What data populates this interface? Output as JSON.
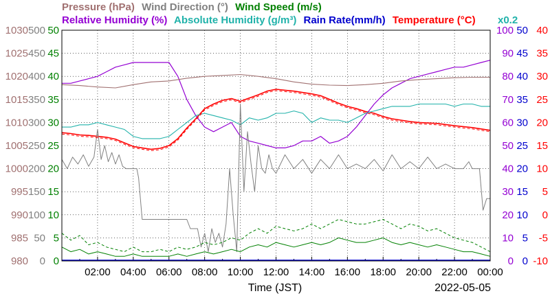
{
  "chart_data": {
    "type": "line",
    "date_label": "2022-05-05",
    "xlabel": "Time (JST)",
    "x_tick_labels": [
      "02:00",
      "04:00",
      "06:00",
      "08:00",
      "10:00",
      "12:00",
      "14:00",
      "16:00",
      "18:00",
      "20:00",
      "22:00",
      "00:00"
    ],
    "x_unit": "hours",
    "xlim": [
      0,
      24
    ],
    "legend_row1": [
      {
        "id": "pressure",
        "label": "Pressure (hPa)",
        "color": "#a07070"
      },
      {
        "id": "winddir",
        "label": "Wind Direction (°)",
        "color": "#808080"
      },
      {
        "id": "windspeed",
        "label": "Wind Speed (m/s)",
        "color": "#008000"
      }
    ],
    "legend_row2": [
      {
        "id": "rh",
        "label": "Relative Humidity (%)",
        "color": "#9400d3"
      },
      {
        "id": "ah",
        "label": "Absolute Humidity (g/m³)",
        "color": "#20b2aa"
      },
      {
        "id": "rain",
        "label": "Rain Rate(mm/h)",
        "color": "#0000cd"
      },
      {
        "id": "temp",
        "label": "Temperature (°C)",
        "color": "#ff0000"
      }
    ],
    "ah_scale_note": "x0.2",
    "axes": {
      "pressure": {
        "ticks": [
          "1030",
          "1025",
          "1020",
          "1015",
          "1010",
          "1005",
          "1000",
          "995",
          "990",
          "985",
          "980"
        ],
        "ylim": [
          980,
          1030
        ],
        "color": "#a07070"
      },
      "winddir": {
        "ticks": [
          "500",
          "450",
          "400",
          "350",
          "300",
          "250",
          "200",
          "150",
          "100",
          "50",
          "0"
        ],
        "ylim": [
          0,
          500
        ],
        "color": "#808080"
      },
      "windspeed": {
        "ticks": [
          "50",
          "45",
          "40",
          "35",
          "30",
          "25",
          "20",
          "15",
          "10",
          "5",
          "0"
        ],
        "ylim": [
          0,
          50
        ],
        "color": "#008000"
      },
      "rh": {
        "ticks": [
          "100",
          "90",
          "80",
          "70",
          "60",
          "50",
          "40",
          "30",
          "20",
          "10",
          "0"
        ],
        "ylim": [
          0,
          100
        ],
        "color": "#9400d3"
      },
      "rain": {
        "ticks": [
          "50",
          "45",
          "40",
          "35",
          "30",
          "25",
          "20",
          "15",
          "10",
          "5",
          "0"
        ],
        "ylim": [
          0,
          50
        ],
        "color": "#0000cd"
      },
      "temp": {
        "ticks": [
          "40",
          "35",
          "30",
          "25",
          "20",
          "15",
          "10",
          "5",
          "0",
          "-5",
          "-10"
        ],
        "ylim": [
          -10,
          40
        ],
        "color": "#ff0000"
      }
    },
    "series": [
      {
        "name": "Temperature (°C)",
        "color": "#ff0000",
        "axis": "temp",
        "width": 1.6,
        "x": [
          0,
          0.5,
          1,
          1.5,
          2,
          2.5,
          3,
          3.5,
          4,
          4.5,
          5,
          5.5,
          6,
          6.5,
          7,
          7.5,
          8,
          8.5,
          9,
          9.5,
          10,
          10.5,
          11,
          11.5,
          12,
          12.5,
          13,
          13.5,
          14,
          14.5,
          15,
          15.5,
          16,
          16.5,
          17,
          17.5,
          18,
          18.5,
          19,
          19.5,
          20,
          21,
          22,
          23,
          24
        ],
        "y": [
          17.8,
          17.6,
          17.3,
          17.2,
          17.0,
          16.8,
          16.4,
          15.6,
          14.8,
          14.5,
          14.2,
          14.4,
          15.0,
          16.5,
          18.8,
          20.8,
          23.0,
          24.0,
          24.8,
          25.2,
          24.6,
          25.3,
          26.0,
          26.8,
          27.2,
          27.0,
          26.8,
          26.5,
          26.2,
          25.8,
          25.0,
          24.2,
          23.5,
          23.0,
          22.4,
          22.0,
          21.3,
          20.8,
          20.5,
          20.2,
          20.0,
          19.8,
          19.3,
          18.9,
          18.3
        ]
      },
      {
        "name": "Relative Humidity (%)",
        "color": "#9400d3",
        "axis": "rh",
        "width": 1.2,
        "x": [
          0,
          0.5,
          1,
          1.5,
          2,
          2.5,
          3,
          3.5,
          4,
          4.5,
          5,
          5.5,
          6,
          6.5,
          7,
          7.5,
          8,
          8.5,
          9,
          9.5,
          10,
          10.5,
          11,
          11.5,
          12,
          12.5,
          13,
          13.5,
          14,
          14.5,
          15,
          15.5,
          16,
          16.5,
          17,
          17.5,
          18,
          18.5,
          19,
          19.5,
          20,
          20.5,
          21,
          21.5,
          22,
          22.5,
          23,
          23.5,
          24
        ],
        "y": [
          77,
          77,
          78,
          79,
          80,
          82,
          84,
          85,
          86,
          86,
          86,
          86,
          86,
          80,
          70,
          63,
          58,
          56,
          58,
          60,
          54,
          52,
          51,
          50,
          49,
          49,
          50,
          52,
          52,
          54,
          51,
          52,
          54,
          58,
          63,
          68,
          72,
          75,
          77,
          79,
          80,
          81,
          82,
          83,
          84,
          84,
          85,
          86,
          87
        ]
      },
      {
        "name": "Absolute Humidity (g/m³)",
        "color": "#20b2aa",
        "axis": "rh",
        "width": 1.1,
        "x": [
          0,
          0.5,
          1,
          1.5,
          2,
          2.5,
          3,
          3.5,
          4,
          4.5,
          5,
          5.5,
          6,
          6.5,
          7,
          7.5,
          8,
          8.5,
          9,
          9.5,
          10,
          10.5,
          11,
          11.5,
          12,
          12.5,
          13,
          13.5,
          14,
          14.5,
          15,
          15.5,
          16,
          16.5,
          17,
          17.5,
          18,
          18.5,
          19,
          19.5,
          20,
          20.5,
          21,
          21.5,
          22,
          22.5,
          23,
          23.5,
          24
        ],
        "y": [
          58,
          58,
          59,
          59,
          60,
          59,
          58,
          57,
          54,
          53,
          53,
          53,
          54,
          57,
          60,
          63,
          64,
          63,
          62,
          61,
          59,
          62,
          61,
          62,
          64,
          64,
          65,
          64,
          60,
          62,
          61,
          61,
          60,
          62,
          64,
          65,
          66,
          67,
          67,
          67,
          68,
          68,
          68,
          68,
          67,
          68,
          68,
          67,
          67
        ]
      },
      {
        "name": "Pressure (hPa)",
        "color": "#a07070",
        "axis": "pressure",
        "width": 1.1,
        "x": [
          0,
          1,
          2,
          3,
          4,
          5,
          6,
          7,
          8,
          9,
          10,
          11,
          12,
          13,
          14,
          15,
          16,
          17,
          18,
          19,
          20,
          21,
          22,
          23,
          24
        ],
        "y": [
          1018.2,
          1018.0,
          1017.7,
          1017.5,
          1018.2,
          1018.8,
          1019.0,
          1019.6,
          1020.0,
          1020.2,
          1020.4,
          1020.0,
          1019.5,
          1018.8,
          1018.3,
          1018.1,
          1018.0,
          1018.2,
          1018.5,
          1019.0,
          1019.3,
          1019.5,
          1019.7,
          1019.8,
          1019.8
        ]
      },
      {
        "name": "Wind Direction (°)",
        "color": "#808080",
        "axis": "winddir",
        "width": 1.0,
        "x": [
          0,
          0.3,
          0.6,
          0.9,
          1.2,
          1.5,
          1.8,
          2.0,
          2.2,
          2.4,
          2.6,
          2.8,
          3.0,
          3.2,
          3.4,
          3.6,
          3.8,
          4.0,
          4.2,
          4.3,
          4.5,
          5.0,
          5.5,
          6.0,
          6.5,
          7.0,
          7.2,
          7.4,
          7.6,
          7.8,
          8.0,
          8.2,
          8.4,
          8.6,
          8.8,
          9.0,
          9.2,
          9.4,
          9.6,
          9.8,
          10.0,
          10.2,
          10.4,
          10.6,
          10.8,
          11.0,
          11.2,
          11.4,
          11.6,
          11.8,
          12.0,
          12.5,
          13.0,
          13.5,
          14.0,
          14.5,
          15.0,
          15.5,
          16.0,
          16.5,
          17.0,
          17.5,
          18.0,
          18.5,
          19.0,
          19.5,
          20.0,
          20.5,
          21.0,
          21.5,
          22.0,
          22.5,
          22.8,
          23.0,
          23.2,
          23.4,
          23.6,
          23.8,
          24.0
        ],
        "y": [
          220,
          200,
          225,
          210,
          230,
          205,
          225,
          285,
          220,
          250,
          215,
          235,
          210,
          230,
          205,
          200,
          200,
          200,
          200,
          180,
          90,
          90,
          90,
          90,
          90,
          90,
          70,
          70,
          70,
          30,
          60,
          20,
          70,
          40,
          60,
          30,
          80,
          200,
          100,
          20,
          340,
          150,
          280,
          210,
          150,
          250,
          200,
          190,
          230,
          200,
          190,
          230,
          200,
          220,
          190,
          220,
          200,
          230,
          200,
          210,
          200,
          220,
          195,
          230,
          200,
          215,
          200,
          225,
          200,
          210,
          200,
          200,
          215,
          200,
          200,
          200,
          110,
          135,
          135
        ]
      },
      {
        "name": "Wind Speed (m/s)",
        "color": "#008000",
        "axis": "windspeed",
        "width": 1.0,
        "x": [
          0,
          0.5,
          1,
          1.5,
          2,
          2.5,
          3,
          3.5,
          4,
          4.5,
          5,
          5.5,
          6,
          6.5,
          7,
          7.5,
          8,
          8.5,
          9,
          9.5,
          10,
          10.5,
          11,
          11.5,
          12,
          12.5,
          13,
          13.5,
          14,
          14.5,
          15,
          15.5,
          16,
          16.5,
          17,
          17.5,
          18,
          18.5,
          19,
          19.5,
          20,
          20.5,
          21,
          21.5,
          22,
          22.5,
          23,
          23.5,
          24
        ],
        "y": [
          3,
          2,
          2.5,
          1.5,
          2,
          1.5,
          1,
          1,
          1.5,
          1,
          1,
          1,
          1,
          1.5,
          1,
          1.5,
          2,
          1.5,
          2,
          2.5,
          2,
          3,
          3.5,
          3,
          4,
          3.5,
          3,
          3.5,
          4,
          3.5,
          4,
          5,
          4.5,
          4,
          4,
          4.5,
          5,
          4,
          3.5,
          4,
          3.5,
          3,
          3.5,
          3,
          2.5,
          2,
          2,
          1.5,
          1
        ]
      },
      {
        "name": "Wind Speed Gust (m/s)",
        "color": "#008000",
        "axis": "windspeed",
        "width": 1.0,
        "dash": true,
        "x": [
          0,
          0.5,
          1,
          1.5,
          2,
          2.5,
          3,
          3.5,
          4,
          4.5,
          5,
          5.5,
          6,
          6.5,
          7,
          7.5,
          8,
          8.5,
          9,
          9.5,
          10,
          10.5,
          11,
          11.5,
          12,
          12.5,
          13,
          13.5,
          14,
          14.5,
          15,
          15.5,
          16,
          16.5,
          17,
          17.5,
          18,
          18.5,
          19,
          19.5,
          20,
          20.5,
          21,
          21.5,
          22,
          22.5,
          23,
          23.5,
          24
        ],
        "y": [
          6,
          4.5,
          5.5,
          3.5,
          4,
          3,
          2.5,
          2,
          3,
          2,
          2,
          2.5,
          2,
          3,
          2.5,
          3,
          4,
          3.5,
          4,
          5,
          4.5,
          6,
          7,
          6,
          7.5,
          7,
          6.5,
          7,
          8,
          7,
          8,
          9,
          8.5,
          8,
          8,
          8.5,
          9,
          8,
          7,
          8,
          7.5,
          6.5,
          7,
          6,
          5,
          4.5,
          4,
          3,
          2
        ]
      }
    ]
  }
}
